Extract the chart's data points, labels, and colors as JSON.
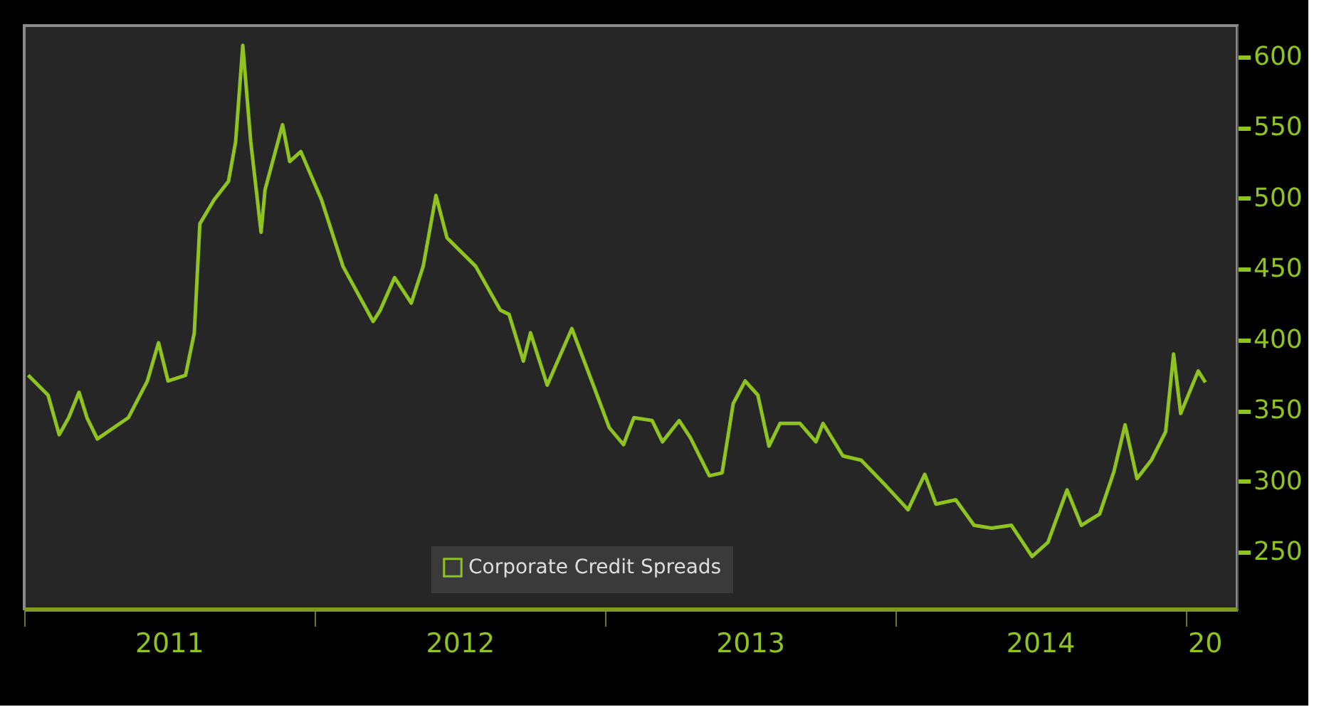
{
  "chart_data": {
    "type": "line",
    "x": [
      "2011-01-06",
      "2011-01-31",
      "2011-02-14",
      "2011-02-26",
      "2011-03-11",
      "2011-03-21",
      "2011-04-03",
      "2011-05-12",
      "2011-06-05",
      "2011-06-19",
      "2011-07-01",
      "2011-07-23",
      "2011-08-03",
      "2011-08-10",
      "2011-08-28",
      "2011-09-15",
      "2011-09-24",
      "2011-10-03",
      "2011-10-13",
      "2011-10-26",
      "2011-10-31",
      "2011-11-22",
      "2011-12-01",
      "2011-12-15",
      "2012-01-10",
      "2012-02-06",
      "2012-03-15",
      "2012-03-24",
      "2012-04-11",
      "2012-05-02",
      "2012-05-17",
      "2012-06-02",
      "2012-06-16",
      "2012-07-22",
      "2012-08-22",
      "2012-09-02",
      "2012-09-20",
      "2012-09-29",
      "2012-10-20",
      "2012-11-20",
      "2012-12-19",
      "2013-01-06",
      "2013-01-24",
      "2013-02-06",
      "2013-03-01",
      "2013-03-14",
      "2013-04-04",
      "2013-04-18",
      "2013-05-12",
      "2013-05-28",
      "2013-06-11",
      "2013-06-26",
      "2013-07-12",
      "2013-07-26",
      "2013-08-09",
      "2013-09-03",
      "2013-09-23",
      "2013-10-02",
      "2013-10-27",
      "2013-11-19",
      "2013-12-20",
      "2014-01-17",
      "2014-02-07",
      "2014-02-21",
      "2014-03-18",
      "2014-04-10",
      "2014-05-02",
      "2014-05-27",
      "2014-06-22",
      "2014-07-12",
      "2014-08-05",
      "2014-08-23",
      "2014-09-15",
      "2014-10-03",
      "2014-10-17",
      "2014-11-01",
      "2014-11-19",
      "2014-12-07",
      "2014-12-17",
      "2014-12-26",
      "2015-01-17",
      "2015-01-26"
    ],
    "series": [
      {
        "name": "Corporate Credit Spreads",
        "color": "#8fc31f",
        "values": [
          375,
          361,
          333,
          345,
          363,
          345,
          330,
          345,
          371,
          398,
          371,
          375,
          405,
          482,
          499,
          512,
          540,
          608,
          540,
          476,
          506,
          552,
          526,
          533,
          499,
          452,
          413,
          421,
          444,
          426,
          452,
          502,
          472,
          452,
          421,
          418,
          385,
          405,
          368,
          408,
          365,
          338,
          326,
          345,
          343,
          328,
          343,
          331,
          304,
          306,
          355,
          371,
          361,
          325,
          341,
          341,
          328,
          341,
          318,
          315,
          297,
          280,
          305,
          284,
          287,
          269,
          267,
          269,
          247,
          257,
          294,
          269,
          277,
          307,
          340,
          302,
          315,
          335,
          390,
          348,
          378,
          370
        ]
      }
    ],
    "xlim": [
      "2011-01-01",
      "2015-03-07"
    ],
    "xticks": [
      {
        "value": "2011-01-01",
        "label": null
      },
      {
        "value": "2011-07-02",
        "label": "2011"
      },
      {
        "value": "2012-01-01",
        "label": null
      },
      {
        "value": "2012-07-02",
        "label": "2012"
      },
      {
        "value": "2013-01-01",
        "label": null
      },
      {
        "value": "2013-07-02",
        "label": "2013"
      },
      {
        "value": "2014-01-01",
        "label": null
      },
      {
        "value": "2014-07-02",
        "label": "2014"
      },
      {
        "value": "2015-01-01",
        "label": null
      },
      {
        "value": "2015-01-25",
        "label": "20"
      }
    ],
    "ylim": [
      210,
      622
    ],
    "yticks": [
      250,
      300,
      350,
      400,
      450,
      500,
      550,
      600
    ],
    "legend": "bottom",
    "grid": false
  }
}
